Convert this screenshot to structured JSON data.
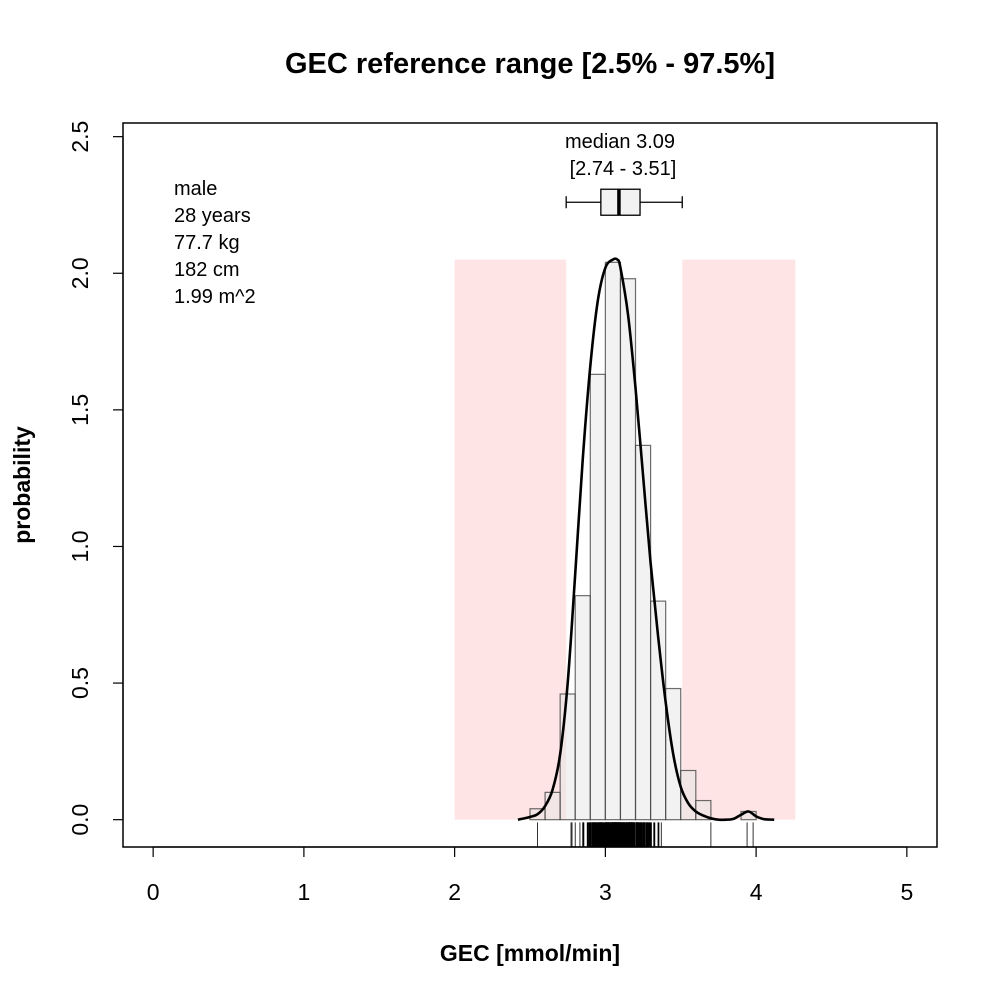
{
  "chart_data": {
    "type": "histogram",
    "title": "GEC reference range [2.5% - 97.5%]",
    "xlabel": "GEC [mmol/min]",
    "ylabel": "probability",
    "xlim": [
      -0.2,
      5.2
    ],
    "ylim": [
      -0.1,
      2.55
    ],
    "x_ticks": [
      0,
      1,
      2,
      3,
      4,
      5
    ],
    "y_ticks": [
      0.0,
      0.5,
      1.0,
      1.5,
      2.0,
      2.5
    ],
    "x_tick_labels": [
      "0",
      "1",
      "2",
      "3",
      "4",
      "5"
    ],
    "y_tick_labels": [
      "0.0",
      "0.5",
      "1.0",
      "1.5",
      "2.0",
      "2.5"
    ],
    "grid": false,
    "subject_info": [
      "male",
      "28 years",
      "77.7 kg",
      "182 cm",
      "1.99 m^2"
    ],
    "median_label": "median 3.09",
    "range_label": "[2.74 - 3.51]",
    "median": 3.09,
    "reference_range": [
      2.74,
      3.51
    ],
    "shaded_regions": [
      [
        2.0,
        2.74
      ],
      [
        3.51,
        4.26
      ]
    ],
    "shaded_height": 2.05,
    "boxplot": {
      "whisker_low": 2.74,
      "q1": 2.97,
      "median": 3.09,
      "q3": 3.23,
      "whisker_high": 3.51,
      "y": 2.26
    },
    "histogram": {
      "bin_width": 0.1,
      "bins": [
        {
          "x0": 2.5,
          "x1": 2.6,
          "value": 0.04
        },
        {
          "x0": 2.6,
          "x1": 2.7,
          "value": 0.1
        },
        {
          "x0": 2.7,
          "x1": 2.8,
          "value": 0.46
        },
        {
          "x0": 2.8,
          "x1": 2.9,
          "value": 0.82
        },
        {
          "x0": 2.9,
          "x1": 3.0,
          "value": 1.63
        },
        {
          "x0": 3.0,
          "x1": 3.1,
          "value": 2.04
        },
        {
          "x0": 3.1,
          "x1": 3.2,
          "value": 1.98
        },
        {
          "x0": 3.2,
          "x1": 3.3,
          "value": 1.37
        },
        {
          "x0": 3.3,
          "x1": 3.4,
          "value": 0.8
        },
        {
          "x0": 3.4,
          "x1": 3.5,
          "value": 0.48
        },
        {
          "x0": 3.5,
          "x1": 3.6,
          "value": 0.18
        },
        {
          "x0": 3.6,
          "x1": 3.7,
          "value": 0.07
        },
        {
          "x0": 3.9,
          "x1": 4.0,
          "value": 0.03
        }
      ]
    },
    "density": {
      "x": [
        2.42,
        2.5,
        2.55,
        2.6,
        2.65,
        2.7,
        2.75,
        2.8,
        2.85,
        2.9,
        2.95,
        3.0,
        3.05,
        3.08,
        3.1,
        3.15,
        3.2,
        3.25,
        3.3,
        3.35,
        3.4,
        3.45,
        3.5,
        3.55,
        3.6,
        3.65,
        3.7,
        3.75,
        3.8,
        3.85,
        3.9,
        3.95,
        4.0,
        4.05,
        4.12
      ],
      "y": [
        0.0,
        0.01,
        0.02,
        0.05,
        0.11,
        0.24,
        0.5,
        0.9,
        1.32,
        1.66,
        1.9,
        2.02,
        2.05,
        2.05,
        2.02,
        1.85,
        1.58,
        1.26,
        0.94,
        0.67,
        0.43,
        0.24,
        0.12,
        0.06,
        0.03,
        0.015,
        0.005,
        0.0,
        0.0,
        0.003,
        0.018,
        0.03,
        0.012,
        0.002,
        0.0
      ]
    },
    "rug_range": [
      2.55,
      3.7
    ],
    "rug_outliers": [
      3.94,
      3.98
    ]
  }
}
